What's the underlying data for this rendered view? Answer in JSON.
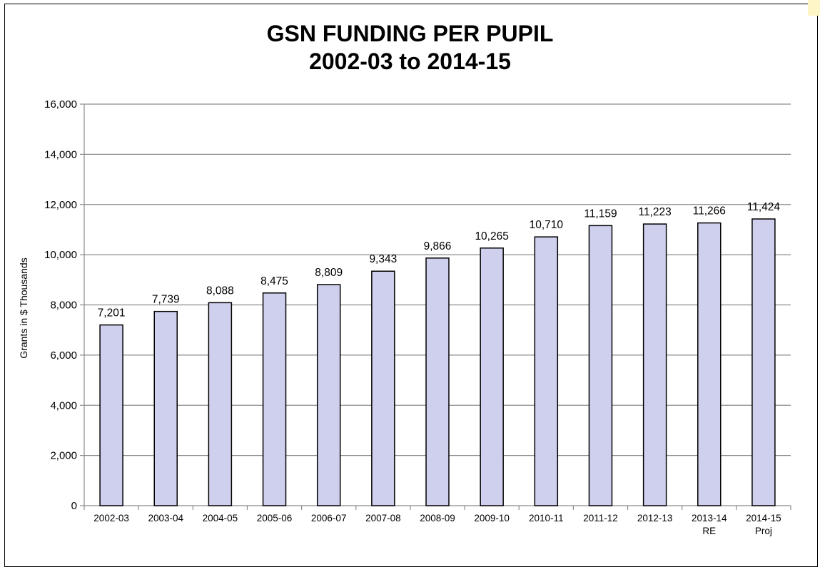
{
  "chart_data": {
    "type": "bar",
    "title": [
      "GSN FUNDING PER PUPIL",
      "2002-03 to 2014-15"
    ],
    "xlabel": "",
    "ylabel": "Grants in $ Thousands",
    "ylim": [
      0,
      16000
    ],
    "yticks": [
      0,
      2000,
      4000,
      6000,
      8000,
      10000,
      12000,
      14000,
      16000
    ],
    "ytick_labels": [
      "0",
      "2,000",
      "4,000",
      "6,000",
      "8,000",
      "10,000",
      "12,000",
      "14,000",
      "16,000"
    ],
    "categories": [
      [
        "2002-03"
      ],
      [
        "2003-04"
      ],
      [
        "2004-05"
      ],
      [
        "2005-06"
      ],
      [
        "2006-07"
      ],
      [
        "2007-08"
      ],
      [
        "2008-09"
      ],
      [
        "2009-10"
      ],
      [
        "2010-11"
      ],
      [
        "2011-12"
      ],
      [
        "2012-13"
      ],
      [
        "2013-14",
        "RE"
      ],
      [
        "2014-15",
        "Proj"
      ]
    ],
    "values": [
      7201,
      7739,
      8088,
      8475,
      8809,
      9343,
      9866,
      10265,
      10710,
      11159,
      11223,
      11266,
      11424
    ],
    "data_labels": [
      "7,201",
      "7,739",
      "8,088",
      "8,475",
      "8,809",
      "9,343",
      "9,866",
      "10,265",
      "10,710",
      "11,159",
      "11,223",
      "11,266",
      "11,424"
    ],
    "grid": true,
    "legend": "none",
    "colors": {
      "bar_fill": "#cfd0ee",
      "bar_stroke": "#000000",
      "grid": "#8c8c8c",
      "accent": "#fff6c8"
    }
  }
}
